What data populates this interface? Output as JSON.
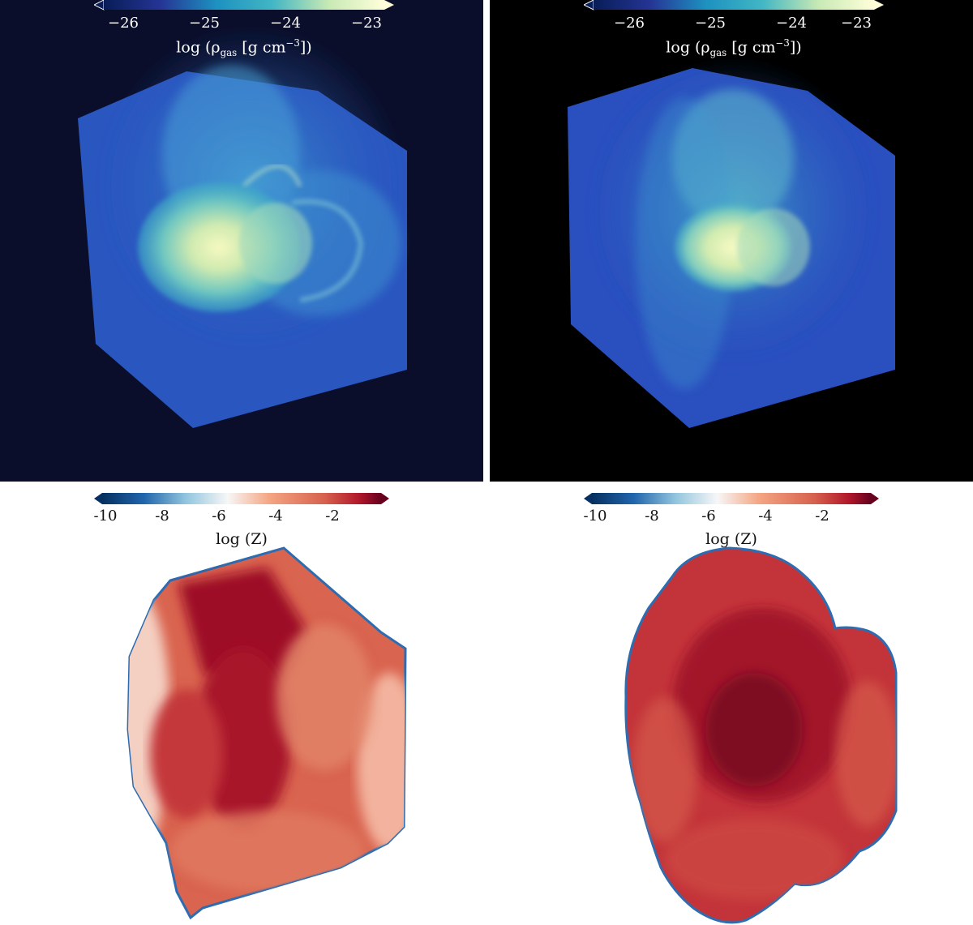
{
  "panels": [
    {
      "id": "top-left",
      "background": "#0a0e2a",
      "colorbar": {
        "colormap": "YlGnBu_r",
        "ticks": [
          "−26",
          "−25",
          "−24",
          "−23"
        ],
        "label_prefix": "log (ρ",
        "label_sub": "gas",
        "label_mid": " [g cm",
        "label_sup": "−3",
        "label_suffix": "])"
      }
    },
    {
      "id": "top-right",
      "background": "#000000",
      "colorbar": {
        "colormap": "YlGnBu_r",
        "ticks": [
          "−26",
          "−25",
          "−24",
          "−23"
        ],
        "label_prefix": "log (ρ",
        "label_sub": "gas",
        "label_mid": " [g cm",
        "label_sup": "−3",
        "label_suffix": "])"
      }
    },
    {
      "id": "bottom-left",
      "background": "#ffffff",
      "colorbar": {
        "colormap": "RdBu_r",
        "ticks": [
          "-10",
          "-8",
          "-6",
          "-4",
          "-2"
        ],
        "label": "log (Z)"
      }
    },
    {
      "id": "bottom-right",
      "background": "#ffffff",
      "colorbar": {
        "colormap": "RdBu_r",
        "ticks": [
          "-10",
          "-8",
          "-6",
          "-4",
          "-2"
        ],
        "label": "log (Z)"
      }
    }
  ],
  "colors": {
    "density_low": "#1f3a9e",
    "density_mid": "#41b6c4",
    "density_high": "#ffffd9",
    "metal_low": "#053061",
    "metal_mid": "#f7f7f7",
    "metal_high": "#67001f"
  }
}
